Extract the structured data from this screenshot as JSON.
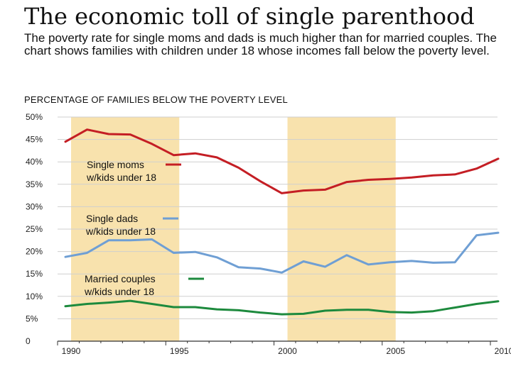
{
  "title": "The economic toll of single parenthood",
  "subtitle": "The poverty rate for single moms and dads is much higher than for married couples. The chart shows families with children under 18 whose incomes fall below the poverty level.",
  "chart_data": {
    "type": "line",
    "ylabel": "PERCENTAGE OF FAMILIES BELOW THE POVERTY LEVEL",
    "x": [
      1990,
      1991,
      1992,
      1993,
      1994,
      1995,
      1996,
      1997,
      1998,
      1999,
      2000,
      2001,
      2002,
      2003,
      2004,
      2005,
      2006,
      2007,
      2008,
      2009,
      2010
    ],
    "xticks": [
      "1990",
      "1995",
      "2000",
      "2005",
      "2010"
    ],
    "yticks": [
      "0",
      "5%",
      "10%",
      "15%",
      "20%",
      "25%",
      "30%",
      "35%",
      "40%",
      "45%",
      "50%"
    ],
    "ylim": [
      0,
      50
    ],
    "xlim": [
      1990,
      2010
    ],
    "shaded_ranges": [
      [
        1990,
        1995
      ],
      [
        2000,
        2005
      ]
    ],
    "colors": {
      "shade": "#f8e2ad",
      "moms": "#c41e24",
      "dads": "#6f9fd4",
      "couples": "#1d8a3d"
    },
    "series": [
      {
        "key": "moms",
        "line1": "Single moms",
        "line2": "w/kids under 18",
        "values": [
          44.5,
          47.2,
          46.2,
          46.1,
          44.0,
          41.5,
          41.9,
          41.0,
          38.7,
          35.7,
          33.0,
          33.6,
          33.8,
          35.5,
          36.0,
          36.2,
          36.5,
          37.0,
          37.2,
          38.5,
          40.7
        ]
      },
      {
        "key": "dads",
        "line1": "Single dads",
        "line2": "w/kids under 18",
        "values": [
          18.8,
          19.7,
          22.5,
          22.5,
          22.7,
          19.7,
          19.9,
          18.7,
          16.5,
          16.2,
          15.3,
          17.8,
          16.6,
          19.2,
          17.1,
          17.6,
          17.9,
          17.5,
          17.6,
          23.6,
          24.2
        ]
      },
      {
        "key": "couples",
        "line1": "Married couples",
        "line2": "w/kids under 18",
        "values": [
          7.8,
          8.3,
          8.6,
          9.0,
          8.3,
          7.6,
          7.6,
          7.1,
          6.9,
          6.4,
          6.0,
          6.1,
          6.8,
          7.0,
          7.0,
          6.5,
          6.4,
          6.7,
          7.5,
          8.3,
          8.9
        ]
      }
    ]
  }
}
